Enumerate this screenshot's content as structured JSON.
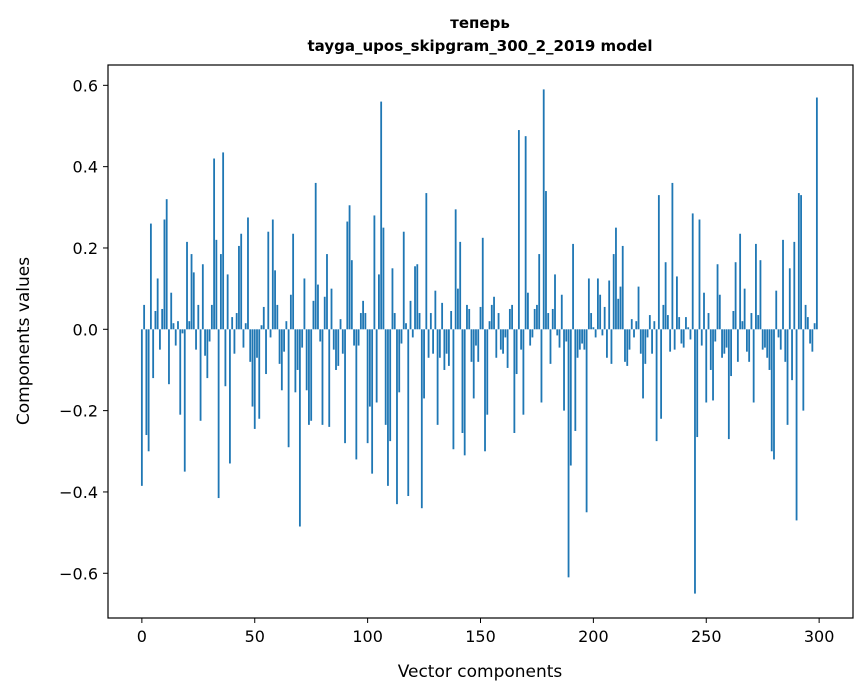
{
  "chart_data": {
    "type": "bar",
    "title": "теперь",
    "subtitle": "tayga_upos_skipgram_300_2_2019 model",
    "xlabel": "Vector components",
    "ylabel": "Components values",
    "xlim": [
      -15,
      315
    ],
    "ylim": [
      -0.71,
      0.65
    ],
    "x_ticks": [
      0,
      50,
      100,
      150,
      200,
      250,
      300
    ],
    "x_tick_labels": [
      "0",
      "50",
      "100",
      "150",
      "200",
      "250",
      "300"
    ],
    "y_ticks": [
      -0.6,
      -0.4,
      -0.2,
      0.0,
      0.2,
      0.4,
      0.6
    ],
    "y_tick_labels": [
      "−0.6",
      "−0.4",
      "−0.2",
      "0.0",
      "0.2",
      "0.4",
      "0.6"
    ],
    "bar_color": "#1f77b4",
    "grid": false,
    "legend": "none",
    "x": "0..299",
    "values": [
      -0.385,
      0.06,
      -0.26,
      -0.3,
      0.26,
      -0.12,
      0.045,
      0.125,
      -0.05,
      0.05,
      0.27,
      0.32,
      -0.135,
      0.09,
      0.015,
      -0.04,
      0.02,
      -0.21,
      -0.01,
      -0.35,
      0.215,
      0.02,
      0.185,
      0.14,
      -0.05,
      0.06,
      -0.225,
      0.16,
      -0.065,
      -0.12,
      -0.03,
      0.06,
      0.42,
      0.22,
      -0.415,
      0.185,
      0.435,
      -0.14,
      0.135,
      -0.33,
      0.03,
      -0.06,
      0.04,
      0.205,
      0.235,
      -0.045,
      0.015,
      0.275,
      -0.08,
      -0.19,
      -0.245,
      -0.07,
      -0.22,
      0.01,
      0.055,
      -0.11,
      0.24,
      -0.02,
      0.27,
      0.145,
      0.06,
      -0.085,
      -0.15,
      -0.055,
      0.02,
      -0.29,
      0.085,
      0.235,
      -0.155,
      -0.1,
      -0.485,
      -0.045,
      0.125,
      -0.15,
      -0.235,
      -0.225,
      0.07,
      0.36,
      0.11,
      -0.03,
      -0.235,
      0.08,
      0.185,
      -0.24,
      0.1,
      -0.05,
      -0.1,
      -0.09,
      0.025,
      -0.06,
      -0.28,
      0.265,
      0.305,
      0.17,
      -0.04,
      -0.32,
      -0.04,
      0.04,
      0.07,
      0.04,
      -0.28,
      -0.19,
      -0.355,
      0.28,
      -0.18,
      0.135,
      0.56,
      0.25,
      -0.235,
      -0.385,
      -0.275,
      0.15,
      0.04,
      -0.43,
      -0.155,
      -0.035,
      0.24,
      0.015,
      -0.41,
      0.07,
      -0.02,
      0.155,
      0.16,
      0.04,
      -0.44,
      -0.17,
      0.335,
      -0.07,
      0.04,
      -0.06,
      0.095,
      -0.235,
      -0.07,
      0.065,
      -0.1,
      -0.06,
      -0.09,
      0.045,
      -0.295,
      0.295,
      0.1,
      0.215,
      -0.255,
      -0.31,
      0.06,
      0.05,
      -0.08,
      -0.17,
      -0.04,
      -0.08,
      0.055,
      0.225,
      -0.3,
      -0.21,
      0.02,
      0.06,
      0.08,
      -0.07,
      0.04,
      -0.05,
      -0.06,
      -0.02,
      -0.095,
      0.05,
      0.06,
      -0.255,
      -0.11,
      0.49,
      -0.05,
      -0.21,
      0.475,
      0.09,
      -0.04,
      -0.02,
      0.05,
      0.06,
      0.185,
      -0.18,
      0.59,
      0.34,
      0.04,
      -0.085,
      0.05,
      0.135,
      -0.015,
      -0.045,
      0.085,
      -0.2,
      -0.03,
      -0.61,
      -0.335,
      0.21,
      -0.25,
      -0.07,
      -0.05,
      -0.035,
      -0.05,
      -0.45,
      0.125,
      0.04,
      0.005,
      -0.02,
      0.125,
      0.085,
      -0.015,
      0.055,
      -0.07,
      0.12,
      -0.085,
      0.185,
      0.25,
      0.075,
      0.105,
      0.205,
      -0.08,
      -0.09,
      -0.05,
      0.025,
      -0.02,
      0.02,
      0.105,
      -0.06,
      -0.17,
      -0.085,
      -0.02,
      0.035,
      -0.06,
      0.02,
      -0.275,
      0.33,
      -0.22,
      0.06,
      0.165,
      0.035,
      -0.055,
      0.36,
      -0.05,
      0.13,
      0.03,
      -0.035,
      -0.045,
      0.03,
      0.005,
      -0.025,
      0.285,
      -0.65,
      -0.265,
      0.27,
      -0.04,
      0.09,
      -0.18,
      0.04,
      -0.1,
      -0.175,
      -0.03,
      0.16,
      0.085,
      -0.07,
      -0.06,
      -0.045,
      -0.27,
      -0.115,
      0.045,
      0.165,
      -0.08,
      0.235,
      0.02,
      0.1,
      -0.055,
      -0.08,
      0.04,
      -0.18,
      0.21,
      0.035,
      0.17,
      -0.05,
      -0.045,
      -0.07,
      -0.1,
      -0.3,
      -0.32,
      0.095,
      -0.02,
      -0.05,
      0.22,
      -0.08,
      -0.235,
      0.15,
      -0.125,
      0.215,
      -0.47,
      0.335,
      0.33,
      -0.2,
      0.06,
      0.03,
      -0.035,
      -0.055,
      0.015,
      0.57
    ]
  }
}
